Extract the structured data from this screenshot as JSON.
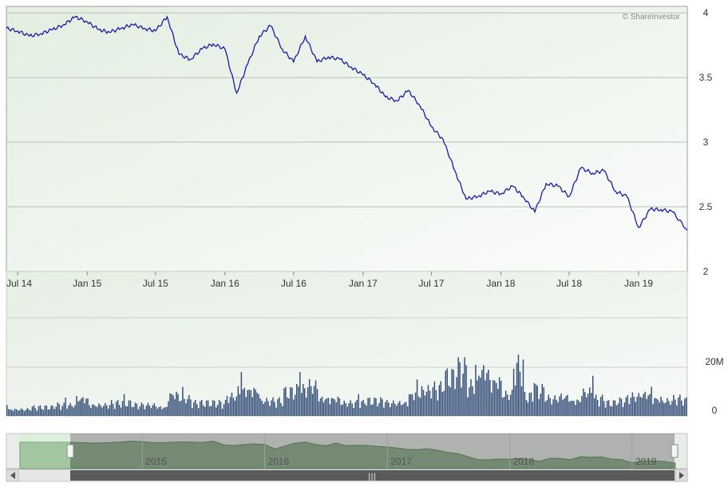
{
  "watermark": "© ShareInvestor",
  "chart_data": [
    {
      "type": "line",
      "name": "price",
      "x_tick_labels": [
        "Jul 14",
        "Jan 15",
        "Jul 15",
        "Jan 16",
        "Jul 16",
        "Jan 17",
        "Jul 17",
        "Jan 18",
        "Jul 18",
        "Jan 19"
      ],
      "x_range": [
        "2014-06-01",
        "2019-05-10"
      ],
      "y_ticks": [
        2,
        2.5,
        3,
        3.5,
        4
      ],
      "y_tick_labels": [
        "2",
        "2.5",
        "3",
        "3.5",
        "4"
      ],
      "ylim": [
        2,
        4.05
      ],
      "y_axis_side": "right",
      "grid": true,
      "line_color": "#1a1aa6",
      "points": [
        [
          "2014-06-01",
          3.88
        ],
        [
          "2014-07-01",
          3.86
        ],
        [
          "2014-08-01",
          3.82
        ],
        [
          "2014-09-01",
          3.84
        ],
        [
          "2014-10-01",
          3.87
        ],
        [
          "2014-11-01",
          3.91
        ],
        [
          "2014-12-01",
          3.97
        ],
        [
          "2015-01-01",
          3.93
        ],
        [
          "2015-02-01",
          3.87
        ],
        [
          "2015-03-01",
          3.85
        ],
        [
          "2015-04-01",
          3.88
        ],
        [
          "2015-05-01",
          3.91
        ],
        [
          "2015-06-01",
          3.88
        ],
        [
          "2015-07-01",
          3.86
        ],
        [
          "2015-08-01",
          3.97
        ],
        [
          "2015-09-01",
          3.68
        ],
        [
          "2015-10-01",
          3.64
        ],
        [
          "2015-11-01",
          3.72
        ],
        [
          "2015-12-01",
          3.76
        ],
        [
          "2016-01-01",
          3.72
        ],
        [
          "2016-02-01",
          3.38
        ],
        [
          "2016-03-01",
          3.6
        ],
        [
          "2016-04-01",
          3.82
        ],
        [
          "2016-05-01",
          3.9
        ],
        [
          "2016-06-01",
          3.72
        ],
        [
          "2016-07-01",
          3.62
        ],
        [
          "2016-08-01",
          3.82
        ],
        [
          "2016-09-01",
          3.62
        ],
        [
          "2016-10-01",
          3.66
        ],
        [
          "2016-11-01",
          3.64
        ],
        [
          "2016-12-01",
          3.58
        ],
        [
          "2017-01-01",
          3.52
        ],
        [
          "2017-02-01",
          3.45
        ],
        [
          "2017-03-01",
          3.35
        ],
        [
          "2017-04-01",
          3.32
        ],
        [
          "2017-05-01",
          3.4
        ],
        [
          "2017-06-01",
          3.28
        ],
        [
          "2017-07-01",
          3.12
        ],
        [
          "2017-08-01",
          3.02
        ],
        [
          "2017-09-01",
          2.78
        ],
        [
          "2017-10-01",
          2.56
        ],
        [
          "2017-11-01",
          2.58
        ],
        [
          "2017-12-01",
          2.62
        ],
        [
          "2018-01-01",
          2.6
        ],
        [
          "2018-02-01",
          2.66
        ],
        [
          "2018-03-01",
          2.58
        ],
        [
          "2018-04-01",
          2.46
        ],
        [
          "2018-05-01",
          2.68
        ],
        [
          "2018-06-01",
          2.66
        ],
        [
          "2018-07-01",
          2.58
        ],
        [
          "2018-08-01",
          2.8
        ],
        [
          "2018-09-01",
          2.76
        ],
        [
          "2018-10-01",
          2.78
        ],
        [
          "2018-11-01",
          2.62
        ],
        [
          "2018-12-01",
          2.58
        ],
        [
          "2019-01-01",
          2.34
        ],
        [
          "2019-02-01",
          2.48
        ],
        [
          "2019-03-01",
          2.48
        ],
        [
          "2019-04-01",
          2.46
        ],
        [
          "2019-05-10",
          2.32
        ]
      ]
    },
    {
      "type": "bar",
      "name": "volume",
      "y_ticks": [
        0,
        20000000
      ],
      "y_tick_labels": [
        "0",
        "20M"
      ],
      "ylim": [
        0,
        40000000
      ],
      "y_axis_side": "right",
      "bar_color": "#36507a",
      "x_range": [
        "2014-06-01",
        "2019-05-10"
      ],
      "values": [
        [
          "2014-06-01",
          3000000
        ],
        [
          "2014-08-01",
          4000000
        ],
        [
          "2014-10-01",
          5000000
        ],
        [
          "2014-12-01",
          8000000
        ],
        [
          "2015-01-01",
          5000000
        ],
        [
          "2015-03-01",
          6000000
        ],
        [
          "2015-05-01",
          5000000
        ],
        [
          "2015-07-01",
          4000000
        ],
        [
          "2015-08-01",
          10000000
        ],
        [
          "2015-09-01",
          8000000
        ],
        [
          "2015-10-01",
          6000000
        ],
        [
          "2016-01-01",
          9000000
        ],
        [
          "2016-02-01",
          12000000
        ],
        [
          "2016-04-01",
          7000000
        ],
        [
          "2016-06-01",
          11000000
        ],
        [
          "2016-07-01",
          12000000
        ],
        [
          "2016-08-01",
          14000000
        ],
        [
          "2016-09-01",
          8000000
        ],
        [
          "2016-11-01",
          6000000
        ],
        [
          "2017-01-01",
          7000000
        ],
        [
          "2017-03-01",
          6000000
        ],
        [
          "2017-05-01",
          10000000
        ],
        [
          "2017-06-01",
          12000000
        ],
        [
          "2017-07-01",
          13000000
        ],
        [
          "2017-08-01",
          18000000
        ],
        [
          "2017-09-01",
          22000000
        ],
        [
          "2017-10-01",
          14000000
        ],
        [
          "2017-11-01",
          21000000
        ],
        [
          "2017-12-01",
          16000000
        ],
        [
          "2018-01-01",
          10000000
        ],
        [
          "2018-02-01",
          23000000
        ],
        [
          "2018-03-01",
          9000000
        ],
        [
          "2018-04-01",
          12000000
        ],
        [
          "2018-05-01",
          8000000
        ],
        [
          "2018-06-01",
          9000000
        ],
        [
          "2018-07-01",
          7000000
        ],
        [
          "2018-08-01",
          11000000
        ],
        [
          "2018-09-01",
          8000000
        ],
        [
          "2018-10-01",
          6000000
        ],
        [
          "2018-11-01",
          7000000
        ],
        [
          "2018-12-01",
          9000000
        ],
        [
          "2019-01-01",
          10000000
        ],
        [
          "2019-02-01",
          8000000
        ],
        [
          "2019-03-01",
          7000000
        ],
        [
          "2019-04-01",
          8000000
        ],
        [
          "2019-05-01",
          7000000
        ]
      ]
    },
    {
      "type": "area",
      "name": "navigator",
      "x_tick_labels": [
        "2015",
        "2016",
        "2017",
        "2018",
        "2019"
      ],
      "x_range": [
        "2014-01-01",
        "2019-05-10"
      ],
      "selected_range": [
        "2014-06-01",
        "2019-05-10"
      ]
    }
  ]
}
